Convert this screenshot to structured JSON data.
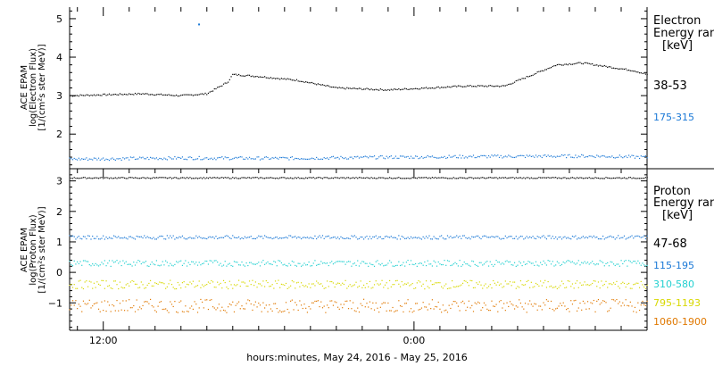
{
  "chart_data": [
    {
      "type": "scatter",
      "panel": "electron",
      "title": "",
      "ylabel_lines": [
        "ACE EPAM",
        "log(Electron Flux)",
        "[1/(cm²s ster MeV)]"
      ],
      "ylim": [
        1.1,
        5.3
      ],
      "yticks": [
        2,
        3,
        4,
        5
      ],
      "xlim": [
        -13.3,
        9.0
      ],
      "legend_title": [
        "Electron",
        "Energy ran",
        "[keV]"
      ],
      "legend_position": "right",
      "series": [
        {
          "name": "38-53",
          "color": "#000000",
          "x": [
            -13.3,
            -10.5,
            -9.0,
            -8.0,
            -7.2,
            -7.0,
            -6.0,
            -4.5,
            -3.0,
            -1.0,
            0.5,
            2.0,
            3.5,
            5.5,
            6.5,
            7.5,
            8.5,
            9.0
          ],
          "y": [
            3.0,
            3.05,
            3.0,
            3.05,
            3.35,
            3.55,
            3.5,
            3.4,
            3.2,
            3.15,
            3.2,
            3.25,
            3.25,
            3.8,
            3.85,
            3.75,
            3.65,
            3.55
          ]
        },
        {
          "name": "175-315",
          "color": "#1a78d6",
          "x": [
            -13.3,
            -9.0,
            -5.0,
            -1.0,
            3.0,
            7.0,
            9.0
          ],
          "y": [
            1.35,
            1.38,
            1.37,
            1.4,
            1.42,
            1.43,
            1.4
          ]
        }
      ]
    },
    {
      "type": "scatter",
      "panel": "proton",
      "title": "",
      "ylabel_lines": [
        "ACE EPAM",
        "log(Proton Flux)",
        "[1/(cm²s ster MeV)]"
      ],
      "ylim": [
        -1.9,
        3.4
      ],
      "yticks": [
        -1,
        0,
        1,
        2,
        3
      ],
      "xlim": [
        -13.3,
        9.0
      ],
      "legend_title": [
        "Proton",
        "Energy ran",
        "[keV]"
      ],
      "legend_position": "right",
      "series": [
        {
          "name": "47-68",
          "color": "#000000",
          "x": [
            -13.3,
            9.0
          ],
          "y": [
            3.1,
            3.1
          ]
        },
        {
          "name": "115-195",
          "color": "#1a78d6",
          "x": [
            -13.3,
            9.0
          ],
          "y": [
            1.15,
            1.15
          ]
        },
        {
          "name": "310-580",
          "color": "#22d0d0",
          "x": [
            -13.3,
            9.0
          ],
          "y": [
            0.3,
            0.3
          ]
        },
        {
          "name": "795-1193",
          "color": "#d8d800",
          "x": [
            -13.3,
            9.0
          ],
          "y": [
            -0.4,
            -0.4
          ]
        },
        {
          "name": "1060-1900",
          "color": "#e07800",
          "x": [
            -13.3,
            9.0
          ],
          "y": [
            -1.1,
            -1.1
          ]
        }
      ]
    }
  ],
  "x_axis": {
    "ticks": [
      {
        "label": "12:00",
        "hour": -12
      },
      {
        "label": "0:00",
        "hour": 0
      }
    ],
    "xlabel": "hours:minutes, May 24, 2016 - May 25, 2016"
  },
  "outliers": [
    {
      "panel": "electron",
      "x": -8.3,
      "y": 4.85,
      "color": "#1a78d6"
    }
  ]
}
